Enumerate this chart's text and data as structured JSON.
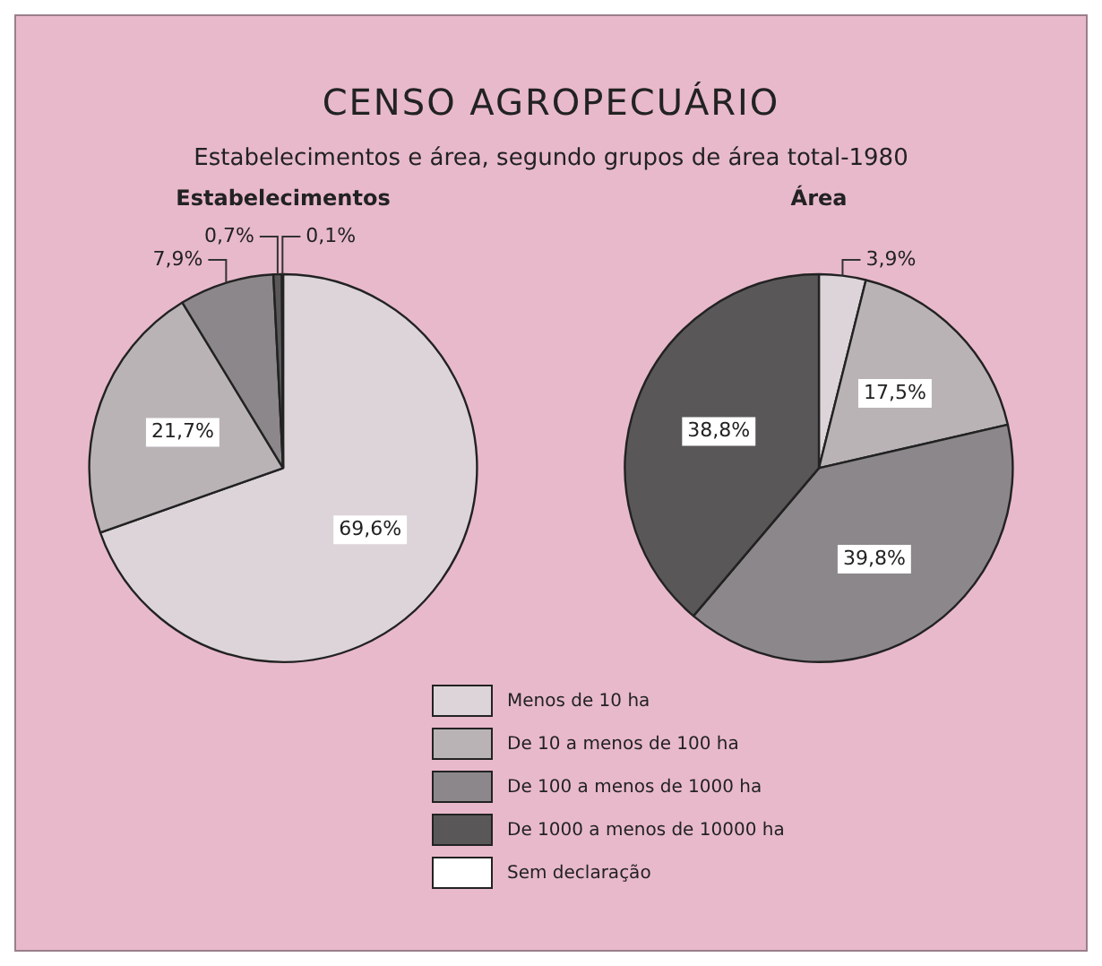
{
  "chart_data": [
    {
      "type": "other",
      "title": "CENSO AGROPECUÁRIO",
      "subtitle": "Estabelecimentos e área, segundo grupos de área total-1980"
    },
    {
      "type": "pie",
      "title": "Estabelecimentos",
      "legend": "bottom",
      "categories": [
        "Menos de 10 ha",
        "De 10 a menos de 100 ha",
        "De 100 a menos de 1000 ha",
        "De 1000 a menos de 10000 ha",
        "Sem declaração"
      ],
      "values": [
        69.6,
        21.7,
        7.9,
        0.7,
        0.1
      ],
      "value_labels": [
        "69,6%",
        "21,7%",
        "7,9%",
        "0,7%",
        "0,1%"
      ],
      "colors": [
        "#dcd4d8",
        "#b9b3b6",
        "#8c878a",
        "#5a5759",
        "#ffffff"
      ]
    },
    {
      "type": "pie",
      "title": "Área",
      "categories": [
        null,
        null,
        null,
        null
      ],
      "values": [
        3.9,
        17.5,
        39.8,
        38.8
      ],
      "value_labels": [
        "3,9%",
        "17,5%",
        "39,8%",
        "38,8%"
      ],
      "colors": [
        "#dcd4d8",
        "#b9b3b6",
        "#8c878a",
        "#5a5759"
      ]
    }
  ]
}
